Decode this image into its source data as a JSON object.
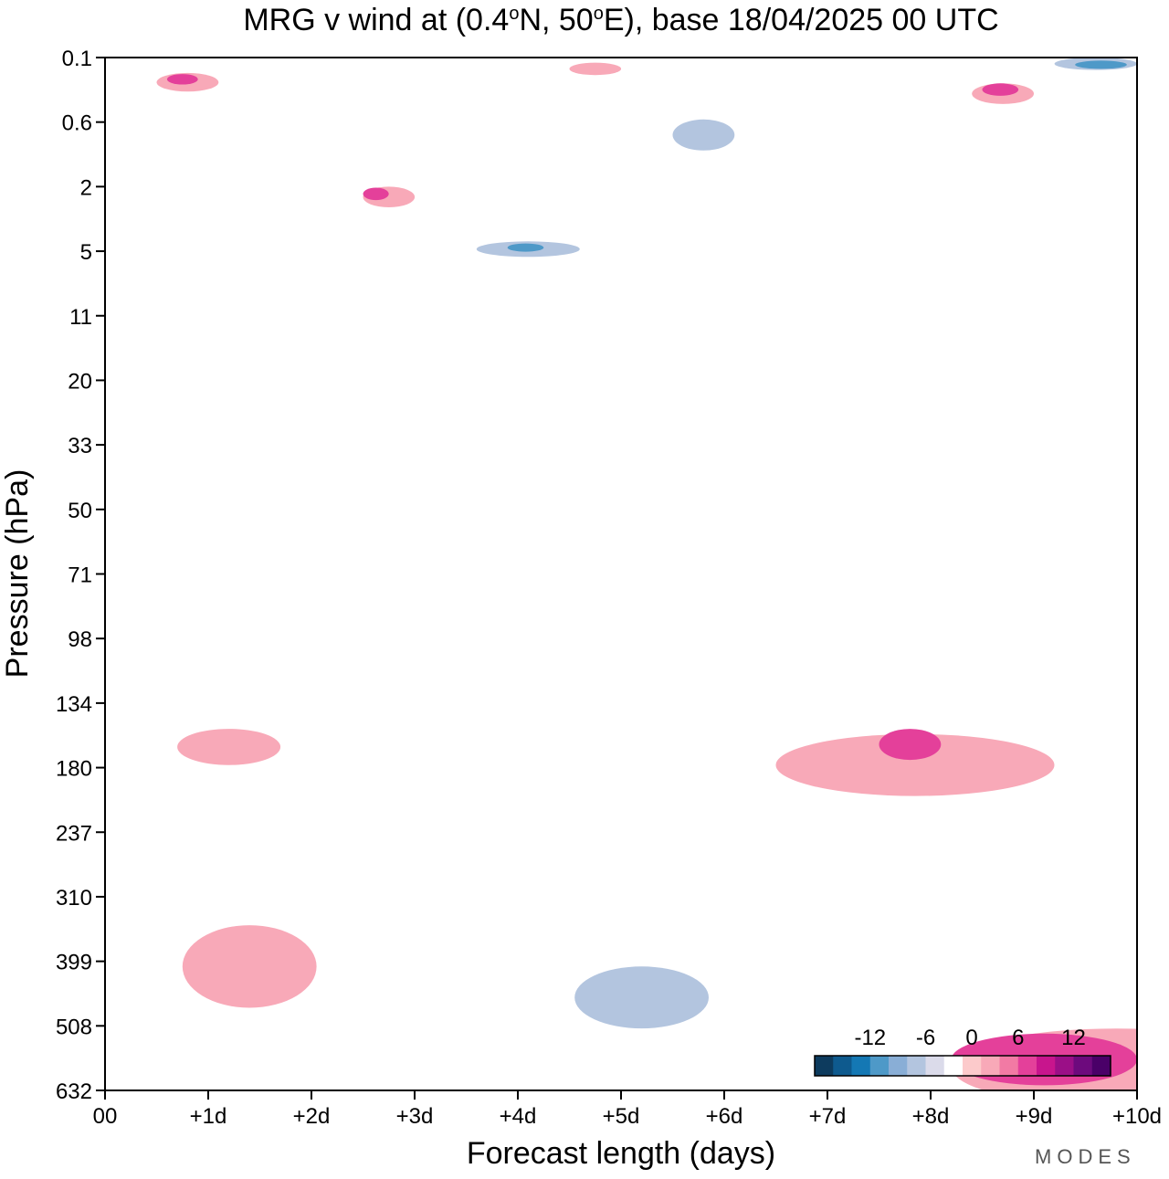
{
  "chart_data": {
    "type": "heatmap",
    "title_parts": [
      "MRG v wind at (0.4",
      "o",
      "N, 50",
      "o",
      "E),  base 18/04/2025  00 UTC"
    ],
    "xlabel": "Forecast length (days)",
    "ylabel": "Pressure (hPa)",
    "x_ticks": [
      "00",
      "+1d",
      "+2d",
      "+3d",
      "+4d",
      "+5d",
      "+6d",
      "+7d",
      "+8d",
      "+9d",
      "+10d"
    ],
    "xlim": [
      0,
      10
    ],
    "y_ticks": [
      "0.1",
      "0.6",
      "2",
      "5",
      "11",
      "20",
      "33",
      "50",
      "71",
      "98",
      "134",
      "180",
      "237",
      "310",
      "399",
      "508",
      "632"
    ],
    "colorbar": {
      "labels": [
        "-12",
        "-6",
        "0",
        "6",
        "12"
      ],
      "label_values": [
        -12,
        -6,
        0,
        6,
        12
      ],
      "levels": [
        -16,
        -14,
        -12,
        -10,
        -8,
        -6,
        -4,
        -2,
        2,
        4,
        6,
        8,
        10,
        12,
        14,
        16
      ],
      "colors": [
        "#0d3b5e",
        "#0e5a8e",
        "#1478b4",
        "#4e99c8",
        "#89aed6",
        "#b3c5df",
        "#dbdbea",
        "#ffffff",
        "#fccacb",
        "#f8a9b8",
        "#f27aa4",
        "#e4409a",
        "#c8158d",
        "#9b0f87",
        "#6d0a7d",
        "#4a0068"
      ]
    },
    "contours": [
      {
        "level": -2,
        "x": 0.05,
        "y": 0.18,
        "w": 0.3,
        "h": 0.012
      },
      {
        "level": -2,
        "x": 0.45,
        "y": 0.55,
        "w": 0.5,
        "h": 0.06
      },
      {
        "level": -2,
        "x": 0.1,
        "y": 0.63,
        "w": 1.4,
        "h": 0.016
      },
      {
        "level": -2,
        "x": 3.1,
        "y": 0.2,
        "w": 0.6,
        "h": 0.035
      },
      {
        "level": -2,
        "x": 4.6,
        "y": 0.3,
        "w": 1.9,
        "h": 0.028
      },
      {
        "level": -2,
        "x": 5.3,
        "y": 0.06,
        "w": 1.2,
        "h": 0.04
      },
      {
        "level": -2,
        "x": 6.5,
        "y": 0.11,
        "w": 2.1,
        "h": 0.05
      },
      {
        "level": -2,
        "x": 4.6,
        "y": 0.445,
        "w": 4.1,
        "h": 0.04
      },
      {
        "level": -2,
        "x": 2.75,
        "y": 0.865,
        "w": 3.1,
        "h": 0.1
      },
      {
        "level": -2,
        "x": 8.9,
        "y": 0.0,
        "w": 1.1,
        "h": 0.022
      },
      {
        "level": -6,
        "x": 3.6,
        "y": 0.178,
        "w": 1.0,
        "h": 0.015
      },
      {
        "level": -6,
        "x": 4.55,
        "y": 0.88,
        "w": 1.3,
        "h": 0.06
      },
      {
        "level": -6,
        "x": 5.5,
        "y": 0.06,
        "w": 0.6,
        "h": 0.03
      },
      {
        "level": -6,
        "x": 9.2,
        "y": 0.0,
        "w": 0.8,
        "h": 0.012
      },
      {
        "level": -10,
        "x": 3.9,
        "y": 0.18,
        "w": 0.35,
        "h": 0.008
      },
      {
        "level": -10,
        "x": 9.4,
        "y": 0.003,
        "w": 0.5,
        "h": 0.008
      },
      {
        "level": 2,
        "x": 0.2,
        "y": 0.015,
        "w": 1.0,
        "h": 0.03
      },
      {
        "level": 2,
        "x": 0.3,
        "y": 0.085,
        "w": 1.5,
        "h": 0.04
      },
      {
        "level": 2,
        "x": 1.8,
        "y": 0.12,
        "w": 1.2,
        "h": 0.045
      },
      {
        "level": 2,
        "x": 3.8,
        "y": 0.025,
        "w": 1.5,
        "h": 0.03
      },
      {
        "level": 2,
        "x": 7.8,
        "y": 0.028,
        "w": 1.8,
        "h": 0.045
      },
      {
        "level": 2,
        "x": 6.9,
        "y": 0.21,
        "w": 1.6,
        "h": 0.045
      },
      {
        "level": 2,
        "x": 3.9,
        "y": 0.58,
        "w": 5.8,
        "h": 0.12
      },
      {
        "level": 2,
        "x": 0.3,
        "y": 0.59,
        "w": 1.7,
        "h": 0.14
      },
      {
        "level": 2,
        "x": 0.3,
        "y": 0.8,
        "w": 2.7,
        "h": 0.14
      },
      {
        "level": 2,
        "x": 0.5,
        "y": 0.985,
        "w": 1.0,
        "h": 0.07
      },
      {
        "level": 2,
        "x": 7.9,
        "y": 0.92,
        "w": 2.9,
        "h": 0.1
      },
      {
        "level": 2,
        "x": 3.7,
        "y": 0.99,
        "w": 0.9,
        "h": 0.07
      },
      {
        "level": 6,
        "x": 0.5,
        "y": 0.015,
        "w": 0.6,
        "h": 0.018
      },
      {
        "level": 6,
        "x": 2.5,
        "y": 0.125,
        "w": 0.5,
        "h": 0.02
      },
      {
        "level": 6,
        "x": 4.5,
        "y": 0.005,
        "w": 0.5,
        "h": 0.012
      },
      {
        "level": 6,
        "x": 8.4,
        "y": 0.025,
        "w": 0.6,
        "h": 0.02
      },
      {
        "level": 6,
        "x": 6.5,
        "y": 0.655,
        "w": 2.7,
        "h": 0.06
      },
      {
        "level": 6,
        "x": 0.7,
        "y": 0.65,
        "w": 1.0,
        "h": 0.035
      },
      {
        "level": 6,
        "x": 0.75,
        "y": 0.84,
        "w": 1.3,
        "h": 0.08
      },
      {
        "level": 6,
        "x": 8.2,
        "y": 0.94,
        "w": 3.2,
        "h": 0.075
      },
      {
        "level": 10,
        "x": 0.6,
        "y": 0.016,
        "w": 0.3,
        "h": 0.01
      },
      {
        "level": 10,
        "x": 2.5,
        "y": 0.126,
        "w": 0.25,
        "h": 0.012
      },
      {
        "level": 10,
        "x": 8.5,
        "y": 0.025,
        "w": 0.35,
        "h": 0.012
      },
      {
        "level": 10,
        "x": 7.5,
        "y": 0.65,
        "w": 0.6,
        "h": 0.03
      },
      {
        "level": 10,
        "x": 8.2,
        "y": 0.945,
        "w": 1.8,
        "h": 0.05
      }
    ]
  },
  "watermark": "MODES"
}
